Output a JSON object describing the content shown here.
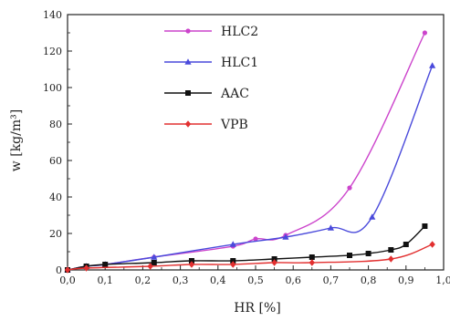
{
  "chart_data": {
    "type": "line",
    "title": "",
    "xlabel": "HR [%]",
    "ylabel": "w [kg/m³]",
    "xlim": [
      0,
      1.0
    ],
    "ylim": [
      0,
      140
    ],
    "x_ticks": [
      "0,0",
      "0,1",
      "0,2",
      "0,3",
      "0,4",
      "0,5",
      "0,6",
      "0,7",
      "0,8",
      "0,9",
      "1,0"
    ],
    "y_ticks": [
      "0",
      "20",
      "40",
      "60",
      "80",
      "100",
      "120",
      "140"
    ],
    "legend_position": "top-center",
    "series": [
      {
        "name": "HLC2",
        "color": "#cc44cc",
        "marker": "circle",
        "points": [
          [
            0.0,
            0
          ],
          [
            0.05,
            2
          ],
          [
            0.1,
            3
          ],
          [
            0.23,
            7
          ],
          [
            0.44,
            13
          ],
          [
            0.5,
            17
          ],
          [
            0.58,
            19
          ],
          [
            0.75,
            45
          ],
          [
            0.95,
            130
          ]
        ]
      },
      {
        "name": "HLC1",
        "color": "#4a4adb",
        "marker": "triangle",
        "points": [
          [
            0.0,
            0
          ],
          [
            0.05,
            2
          ],
          [
            0.1,
            3
          ],
          [
            0.23,
            7
          ],
          [
            0.44,
            14
          ],
          [
            0.58,
            18
          ],
          [
            0.7,
            23
          ],
          [
            0.81,
            29
          ],
          [
            0.97,
            112
          ]
        ]
      },
      {
        "name": "AAC",
        "color": "#111111",
        "marker": "square",
        "points": [
          [
            0.0,
            0
          ],
          [
            0.05,
            2
          ],
          [
            0.1,
            3
          ],
          [
            0.23,
            4
          ],
          [
            0.33,
            5
          ],
          [
            0.44,
            5
          ],
          [
            0.55,
            6
          ],
          [
            0.65,
            7
          ],
          [
            0.75,
            8
          ],
          [
            0.8,
            9
          ],
          [
            0.86,
            11
          ],
          [
            0.9,
            14
          ],
          [
            0.95,
            24
          ]
        ]
      },
      {
        "name": "VPB",
        "color": "#e23030",
        "marker": "diamond",
        "points": [
          [
            0.0,
            0
          ],
          [
            0.05,
            1
          ],
          [
            0.22,
            2
          ],
          [
            0.33,
            3
          ],
          [
            0.44,
            3
          ],
          [
            0.55,
            4
          ],
          [
            0.65,
            4
          ],
          [
            0.86,
            6
          ],
          [
            0.97,
            14
          ]
        ]
      }
    ]
  }
}
